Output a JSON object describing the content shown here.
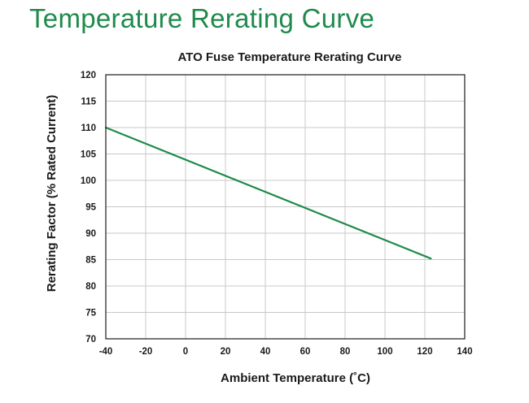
{
  "page": {
    "heading": "Temperature Rerating Curve"
  },
  "colors": {
    "heading": "#1f8a4c",
    "series": "#1f8a4c",
    "grid": "#c8c8c8",
    "axis": "#1a1a1a"
  },
  "chart_data": {
    "type": "line",
    "title": "ATO Fuse Temperature Rerating Curve",
    "xlabel": "Ambient Temperature (˚C)",
    "ylabel": "Rerating Factor (% Rated Current)",
    "xlim": [
      -40,
      140
    ],
    "ylim": [
      70,
      120
    ],
    "xticks": [
      -40,
      -20,
      0,
      20,
      40,
      60,
      80,
      100,
      120,
      140
    ],
    "yticks": [
      70,
      75,
      80,
      85,
      90,
      95,
      100,
      105,
      110,
      115,
      120
    ],
    "grid": true,
    "legend": "none",
    "series": [
      {
        "color": "#1f8a4c",
        "x": [
          -40,
          123
        ],
        "y": [
          110,
          85.2
        ]
      }
    ]
  }
}
